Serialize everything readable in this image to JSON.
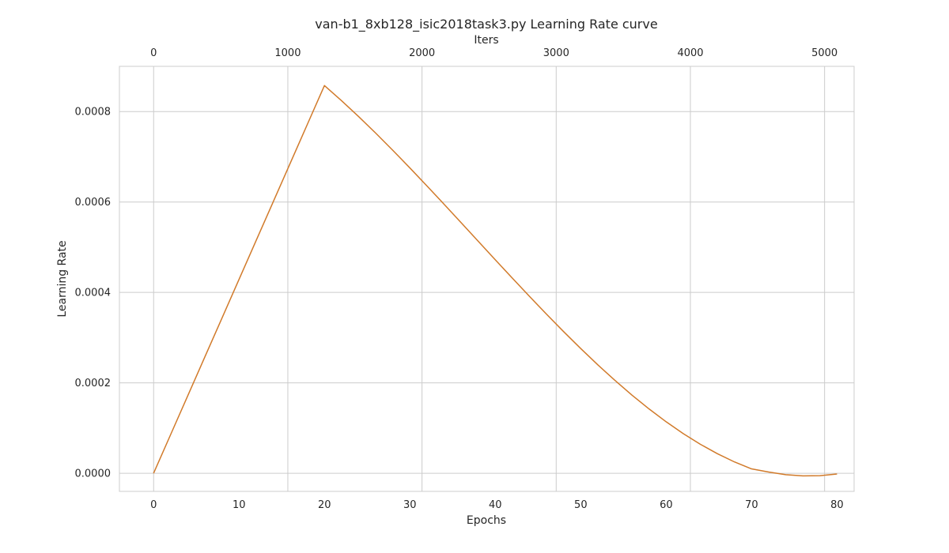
{
  "chart_data": {
    "type": "line",
    "title": "van-b1_8xb128_isic2018task3.py Learning Rate curve",
    "xlabel": "Epochs",
    "ylabel": "Learning Rate",
    "top_xlabel": "Iters",
    "xlim": [
      -4,
      82
    ],
    "ylim": [
      -4e-05,
      0.0009
    ],
    "top_xlim": [
      -255,
      5220
    ],
    "x_ticks": [
      0,
      10,
      20,
      30,
      40,
      50,
      60,
      70,
      80
    ],
    "y_ticks": [
      0.0,
      0.0002,
      0.0004,
      0.0006,
      0.0008
    ],
    "y_tick_labels": [
      "0.0000",
      "0.0002",
      "0.0004",
      "0.0006",
      "0.0008"
    ],
    "top_x_ticks": [
      0,
      1000,
      2000,
      3000,
      4000,
      5000
    ],
    "grid": true,
    "line_color": "#d17a2a",
    "grid_color": "#cccccc",
    "series": [
      {
        "x": [
          0,
          2,
          4,
          6,
          8,
          10,
          12,
          14,
          16,
          18,
          20,
          22,
          24,
          26,
          28,
          30,
          32,
          34,
          36,
          38,
          40,
          42,
          44,
          46,
          48,
          50,
          52,
          54,
          56,
          58,
          60,
          62,
          64,
          66,
          68,
          70,
          72,
          74,
          76,
          78,
          80
        ],
        "values": [
          0.0,
          8.58e-05,
          0.0001715,
          0.0002573,
          0.000343,
          0.0004288,
          0.0005146,
          0.0006003,
          0.0006861,
          0.0007718,
          0.0008576,
          0.0008241,
          0.000789,
          0.0007524,
          0.0007144,
          0.0006754,
          0.0006356,
          0.0005952,
          0.0005543,
          0.0005132,
          0.0004722,
          0.0004315,
          0.0003913,
          0.0003518,
          0.0003133,
          0.0002759,
          0.0002399,
          0.0002055,
          0.0001729,
          0.0001423,
          0.0001139,
          8.78e-05,
          6.42e-05,
          4.33e-05,
          2.51e-05,
          9.7e-06,
          2.8e-06,
          -3.1e-06,
          -5.8e-06,
          -5.2e-06,
          -1.5e-06
        ]
      }
    ]
  }
}
